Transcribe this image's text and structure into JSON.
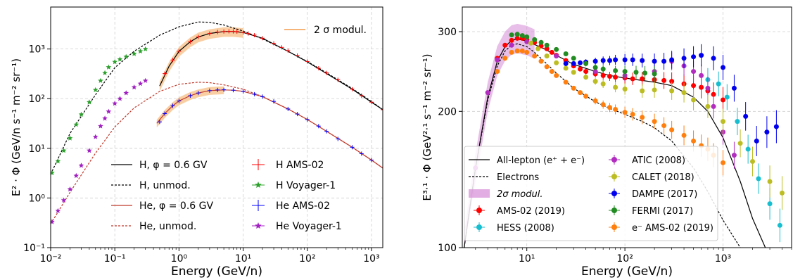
{
  "chart_data": [
    {
      "type": "line",
      "title": "",
      "xlabel": "Energy (GeV/n)",
      "ylabel": "E² · Φ (GeV/n s⁻¹ m⁻² sr⁻¹)",
      "xscale": "log",
      "yscale": "log",
      "xlim": [
        0.01,
        1500
      ],
      "ylim": [
        0.1,
        7000
      ],
      "grid": true,
      "xticks": [
        "10⁻²",
        "10⁻¹",
        "10⁰",
        "10¹",
        "10²",
        "10³"
      ],
      "yticks": [
        "10⁻¹",
        "10⁰",
        "10¹",
        "10²",
        "10³"
      ],
      "band_legend": "2 σ modul.",
      "legend_position": "lower-center",
      "series": [
        {
          "name": "H, φ = 0.6 GV",
          "style": "solid",
          "color": "#000000",
          "x": [
            0.5,
            0.7,
            1,
            1.5,
            2,
            3,
            5,
            7,
            10,
            20,
            50,
            100,
            200,
            500,
            1000,
            1500
          ],
          "y": [
            180,
            450,
            900,
            1400,
            1750,
            2050,
            2250,
            2250,
            2150,
            1650,
            900,
            550,
            320,
            155,
            85,
            60
          ]
        },
        {
          "name": "H, unmod.",
          "style": "dashed",
          "color": "#000000",
          "x": [
            0.01,
            0.02,
            0.05,
            0.1,
            0.2,
            0.5,
            1,
            2,
            3,
            5,
            10,
            20,
            50,
            100,
            200,
            500,
            1000,
            1500
          ],
          "y": [
            3,
            20,
            120,
            420,
            900,
            1900,
            2800,
            3500,
            3450,
            3050,
            2300,
            1600,
            900,
            560,
            330,
            160,
            88,
            60
          ]
        },
        {
          "name": "He, φ = 0.6 GV",
          "style": "solid",
          "color": "#c0392b",
          "x": [
            0.45,
            0.6,
            0.8,
            1,
            1.5,
            2,
            3,
            5,
            7,
            10,
            20,
            50,
            100,
            200,
            500,
            1000,
            1500
          ],
          "y": [
            32,
            50,
            72,
            90,
            115,
            130,
            145,
            150,
            148,
            140,
            110,
            62,
            38,
            22,
            10.5,
            5.8,
            4
          ]
        },
        {
          "name": "He, unmod.",
          "style": "dashed",
          "color": "#c0392b",
          "x": [
            0.01,
            0.02,
            0.05,
            0.1,
            0.2,
            0.5,
            1,
            2,
            3,
            5,
            10,
            20,
            50,
            100,
            200,
            500,
            1000,
            1500
          ],
          "y": [
            0.3,
            1.3,
            8,
            27,
            65,
            140,
            195,
            215,
            210,
            190,
            155,
            110,
            62,
            38,
            22,
            10.5,
            5.8,
            4
          ]
        },
        {
          "name": "H AMS-02",
          "style": "errorbar",
          "color": "#ff0000",
          "x": [
            0.6,
            0.8,
            1,
            1.5,
            2,
            3,
            4,
            5,
            6,
            7,
            8,
            10,
            12,
            15,
            20,
            30,
            40,
            50,
            70,
            100,
            150,
            200,
            300,
            500,
            700,
            1000,
            1500
          ],
          "y": [
            320,
            600,
            900,
            1400,
            1750,
            2050,
            2200,
            2250,
            2270,
            2260,
            2240,
            2150,
            2050,
            1900,
            1650,
            1300,
            1080,
            930,
            740,
            560,
            410,
            330,
            240,
            155,
            115,
            85,
            60
          ]
        },
        {
          "name": "H Voyager-1",
          "style": "star",
          "color": "#2ca02c",
          "x": [
            0.0105,
            0.013,
            0.016,
            0.02,
            0.025,
            0.03,
            0.04,
            0.05,
            0.06,
            0.07,
            0.08,
            0.1,
            0.12,
            0.15,
            0.2,
            0.25,
            0.3
          ],
          "y": [
            3.2,
            5.5,
            9,
            16,
            30,
            48,
            85,
            150,
            230,
            330,
            430,
            550,
            620,
            700,
            800,
            900,
            1000
          ]
        },
        {
          "name": "He AMS-02",
          "style": "errorbar",
          "color": "#0000ff",
          "x": [
            0.5,
            0.6,
            0.8,
            1,
            1.5,
            2,
            3,
            4,
            5,
            7,
            10,
            15,
            20,
            30,
            50,
            70,
            100,
            150,
            200,
            300,
            500,
            700,
            1000
          ],
          "y": [
            34,
            50,
            72,
            90,
            115,
            130,
            145,
            150,
            151,
            148,
            140,
            123,
            110,
            88,
            62,
            49,
            38,
            28,
            22,
            15.5,
            10.5,
            7.8,
            5.8
          ]
        },
        {
          "name": "He Voyager-1",
          "style": "star",
          "color": "#a020c0",
          "x": [
            0.0105,
            0.013,
            0.016,
            0.02,
            0.025,
            0.03,
            0.04,
            0.05,
            0.06,
            0.07,
            0.08,
            0.1,
            0.12,
            0.15,
            0.2,
            0.25,
            0.3
          ],
          "y": [
            0.33,
            0.55,
            0.9,
            1.5,
            2.8,
            4.5,
            9,
            17,
            28,
            40,
            55,
            80,
            100,
            130,
            170,
            200,
            230
          ]
        }
      ]
    },
    {
      "type": "line",
      "title": "",
      "xlabel": "Energy (GeV/n)",
      "ylabel": "E³·¹ · Φ (GeV²·¹ s⁻¹ m⁻² sr⁻¹)",
      "xscale": "log",
      "yscale": "log",
      "xlim": [
        2.2,
        5000
      ],
      "ylim": [
        100,
        340
      ],
      "grid": true,
      "xticks": [
        "10¹",
        "10²",
        "10³"
      ],
      "yticks": [
        "100",
        "200",
        "300"
      ],
      "legend_position": "lower-left",
      "series": [
        {
          "name": "All-lepton (e⁺ + e⁻)",
          "style": "solid",
          "color": "#000000",
          "x": [
            2.3,
            3,
            4,
            5,
            6,
            7,
            8,
            10,
            12,
            15,
            20,
            30,
            50,
            70,
            100,
            150,
            200,
            300,
            500,
            700,
            1000,
            1500,
            2000,
            2700
          ],
          "y": [
            100,
            150,
            215,
            258,
            278,
            287,
            289,
            286,
            281,
            275,
            266,
            254,
            245,
            240,
            237,
            234,
            232,
            228,
            215,
            200,
            175,
            140,
            116,
            100
          ]
        },
        {
          "name": "Electrons",
          "style": "dashed",
          "color": "#000000",
          "x": [
            2.3,
            3,
            4,
            5,
            6,
            7,
            8,
            10,
            12,
            15,
            20,
            30,
            50,
            70,
            100,
            150,
            200,
            300,
            500,
            700,
            1000,
            1500,
            2000
          ],
          "y": [
            100,
            150,
            212,
            252,
            272,
            280,
            282,
            278,
            270,
            258,
            243,
            225,
            210,
            203,
            197,
            190,
            184,
            172,
            150,
            133,
            115,
            100,
            90
          ]
        },
        {
          "name": "2σ modul.",
          "style": "band",
          "color": "#d58ad6"
        },
        {
          "name": "AMS-02 (2019)",
          "style": "errorbar",
          "color": "#ff0000",
          "x": [
            5,
            6,
            7,
            8,
            9,
            10,
            12,
            14,
            16,
            18,
            20,
            25,
            30,
            35,
            40,
            50,
            60,
            70,
            80,
            100,
            120,
            150,
            200,
            250,
            300,
            400,
            500,
            600,
            700,
            800,
            1000
          ],
          "y": [
            262,
            280,
            287,
            290,
            290,
            288,
            284,
            279,
            275,
            270,
            266,
            259,
            252,
            248,
            245,
            242,
            240,
            239,
            238,
            237,
            236,
            236,
            235,
            234,
            233,
            230,
            228,
            226,
            222,
            218,
            212
          ]
        },
        {
          "name": "HESS (2008)",
          "style": "errorbar",
          "color": "#17becf",
          "x": [
            700,
            900,
            1100,
            1400,
            1800,
            2300,
            3000,
            3800
          ],
          "y": [
            235,
            230,
            215,
            190,
            165,
            142,
            125,
            112
          ]
        },
        {
          "name": "ATIC (2008)",
          "style": "errorbar",
          "color": "#b22cc0",
          "x": [
            3,
            4,
            5,
            7,
            10,
            20,
            50,
            100,
            200,
            300,
            400,
            500,
            600,
            700,
            800,
            1000,
            1300
          ],
          "y": [
            150,
            220,
            260,
            280,
            285,
            265,
            245,
            240,
            245,
            258,
            252,
            245,
            240,
            225,
            205,
            180,
            160
          ]
        },
        {
          "name": "CALET (2018)",
          "style": "errorbar",
          "color": "#bcbd22",
          "x": [
            11,
            13,
            16,
            20,
            25,
            30,
            40,
            50,
            60,
            80,
            100,
            150,
            200,
            300,
            400,
            500,
            700,
            1000,
            1500,
            2000,
            3000,
            4000
          ],
          "y": [
            283,
            275,
            265,
            256,
            249,
            244,
            238,
            233,
            230,
            226,
            224,
            222,
            223,
            222,
            220,
            212,
            205,
            190,
            170,
            155,
            140,
            132
          ]
        },
        {
          "name": "DAMPE (2017)",
          "style": "errorbar",
          "color": "#0000ee",
          "x": [
            25,
            30,
            35,
            40,
            50,
            60,
            70,
            80,
            100,
            120,
            150,
            200,
            250,
            300,
            400,
            500,
            600,
            800,
            1000,
            1300,
            1700,
            2200,
            2800,
            3500
          ],
          "y": [
            255,
            255,
            256,
            257,
            258,
            259,
            259,
            260,
            260,
            260,
            259,
            258,
            258,
            260,
            262,
            264,
            266,
            262,
            250,
            225,
            195,
            172,
            180,
            185
          ]
        },
        {
          "name": "FERMI (2017)",
          "style": "errorbar",
          "color": "#228b22",
          "x": [
            7,
            8,
            9,
            10,
            12,
            14,
            16,
            20,
            25,
            30,
            40,
            50,
            60,
            80,
            100,
            130,
            160,
            200
          ],
          "y": [
            295,
            296,
            294,
            292,
            288,
            284,
            280,
            274,
            268,
            262,
            255,
            250,
            248,
            246,
            245,
            244,
            243,
            242
          ]
        },
        {
          "name": "e⁻ AMS-02 (2019)",
          "style": "errorbar",
          "color": "#ff7f0e",
          "x": [
            5,
            6,
            7,
            8,
            9,
            10,
            12,
            14,
            16,
            18,
            20,
            25,
            30,
            35,
            40,
            50,
            60,
            70,
            80,
            100,
            120,
            150,
            200,
            250,
            300,
            400,
            500,
            600,
            700,
            800,
            1000
          ],
          "y": [
            245,
            262,
            270,
            272,
            272,
            270,
            265,
            258,
            251,
            245,
            240,
            232,
            225,
            220,
            216,
            211,
            207,
            204,
            202,
            199,
            197,
            194,
            190,
            186,
            182,
            177,
            172,
            168,
            165,
            160,
            154
          ]
        }
      ]
    }
  ]
}
